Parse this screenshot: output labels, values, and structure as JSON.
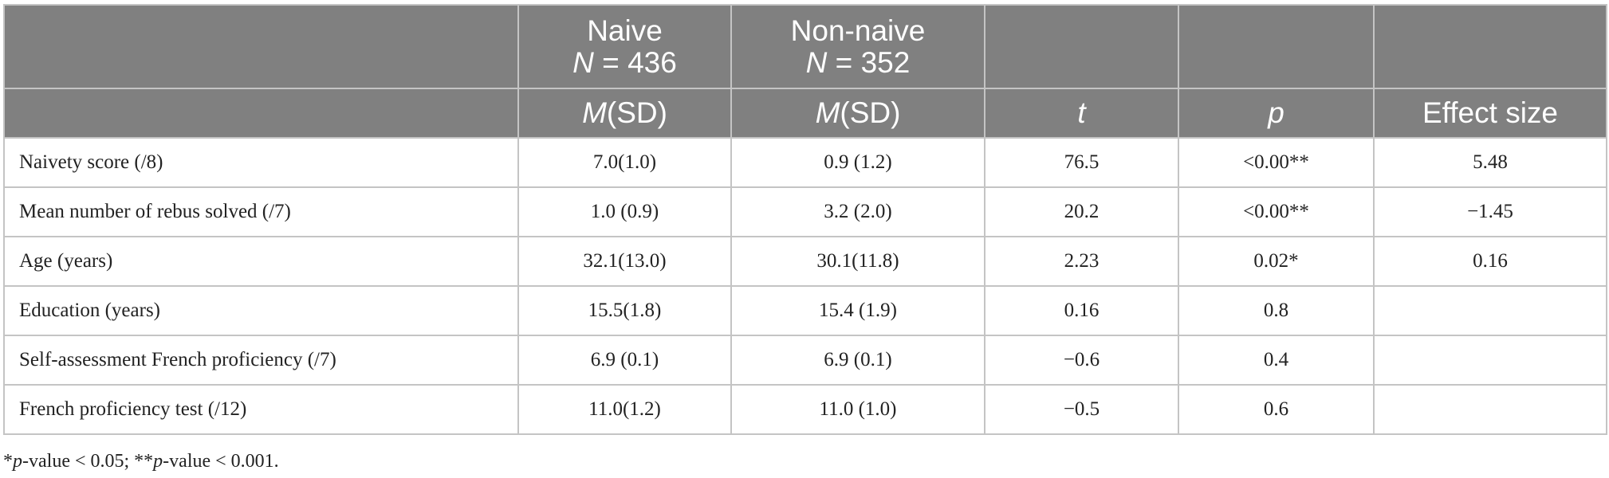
{
  "table": {
    "header": {
      "naive_label": "Naive",
      "naive_n_symbol": "N",
      "naive_n_value": " = 436",
      "nonnaive_label": "Non-naive",
      "nonnaive_n_symbol": "N",
      "nonnaive_n_value": " = 352",
      "m_symbol": "M",
      "sd_label": "(SD)",
      "t_label": "t",
      "p_label": "p",
      "effect_label": "Effect size"
    },
    "rows": [
      {
        "label": "Naivety score (/8)",
        "naive": "7.0(1.0)",
        "nonnaive": "0.9 (1.2)",
        "t": "76.5",
        "p": "<0.00**",
        "effect": "5.48"
      },
      {
        "label": "Mean number of rebus solved (/7)",
        "naive": "1.0 (0.9)",
        "nonnaive": "3.2 (2.0)",
        "t": "20.2",
        "p": "<0.00**",
        "effect": "−1.45"
      },
      {
        "label": "Age (years)",
        "naive": "32.1(13.0)",
        "nonnaive": "30.1(11.8)",
        "t": "2.23",
        "p": "0.02*",
        "effect": "0.16"
      },
      {
        "label": "Education (years)",
        "naive": "15.5(1.8)",
        "nonnaive": "15.4 (1.9)",
        "t": "0.16",
        "p": "0.8",
        "effect": ""
      },
      {
        "label": "Self-assessment French proficiency (/7)",
        "naive": "6.9 (0.1)",
        "nonnaive": "6.9 (0.1)",
        "t": "−0.6",
        "p": "0.4",
        "effect": ""
      },
      {
        "label": "French proficiency test (/12)",
        "naive": "11.0(1.2)",
        "nonnaive": "11.0 (1.0)",
        "t": "−0.5",
        "p": "0.6",
        "effect": ""
      }
    ]
  },
  "footnote": {
    "star1": "*",
    "p1": "p",
    "text1": "-value < 0.05; **",
    "p2": "p",
    "text2": "-value < 0.001."
  }
}
